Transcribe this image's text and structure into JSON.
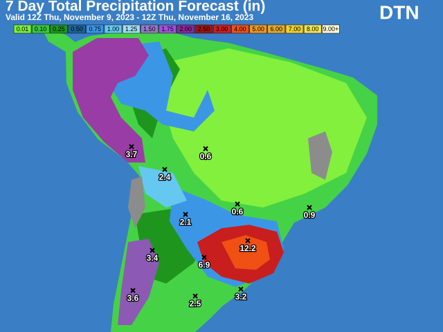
{
  "header": {
    "title": "7 Day Total Precipitation Forecast (in)",
    "subtitle": "Valid 12Z Thu, November 9, 2023 - 12Z Thu, November 16, 2023",
    "logo": "DTN"
  },
  "legend": [
    {
      "label": "0.01",
      "color": "#7cf03c"
    },
    {
      "label": "0.10",
      "color": "#3cc83c"
    },
    {
      "label": "0.25",
      "color": "#1e961e"
    },
    {
      "label": "0.50",
      "color": "#1e6496"
    },
    {
      "label": "0.75",
      "color": "#3c96e6"
    },
    {
      "label": "1.00",
      "color": "#64c8f0"
    },
    {
      "label": "1.25",
      "color": "#a0dcf0"
    },
    {
      "label": "1.50",
      "color": "#9678c8"
    },
    {
      "label": "1.75",
      "color": "#a050dc"
    },
    {
      "label": "2.00",
      "color": "#8c2896"
    },
    {
      "label": "2.50",
      "color": "#a01414"
    },
    {
      "label": "3.00",
      "color": "#d21e1e"
    },
    {
      "label": "4.00",
      "color": "#f05014"
    },
    {
      "label": "5.00",
      "color": "#f0961e"
    },
    {
      "label": "6.00",
      "color": "#e6aa28"
    },
    {
      "label": "7.00",
      "color": "#f0d228"
    },
    {
      "label": "8.00",
      "color": "#f5e650"
    },
    {
      "label": "9.00+",
      "color": "#fff8d2"
    }
  ],
  "points": [
    {
      "label": "3.7"
    },
    {
      "label": "0.6"
    },
    {
      "label": "2.4"
    },
    {
      "label": "0.6"
    },
    {
      "label": "0.9"
    },
    {
      "label": "2.1"
    },
    {
      "label": "12.2"
    },
    {
      "label": "3.4"
    },
    {
      "label": "6.9"
    },
    {
      "label": "3.6"
    },
    {
      "label": "2.5"
    },
    {
      "label": "3.2"
    }
  ]
}
